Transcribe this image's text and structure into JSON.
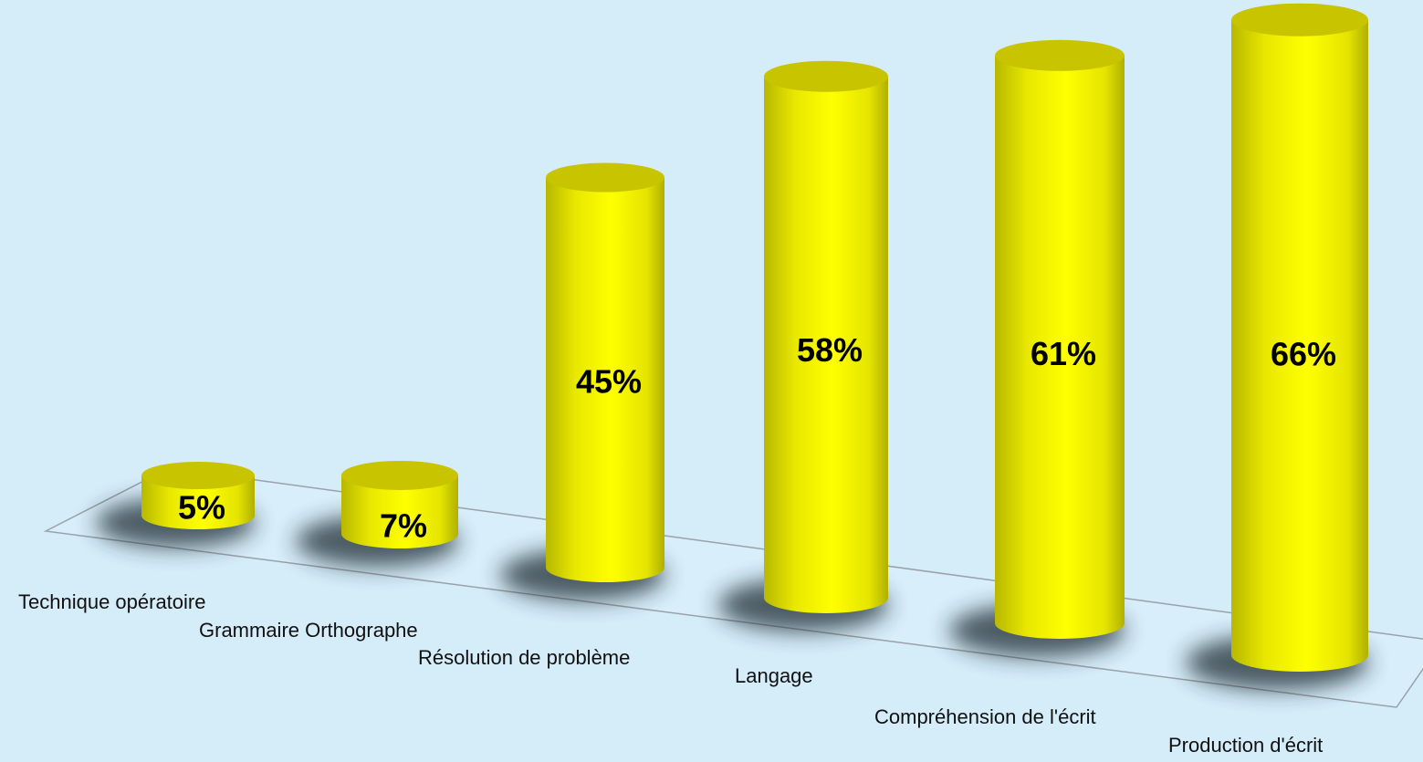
{
  "chart_data": {
    "type": "bar",
    "categories": [
      "Technique opératoire",
      "Grammaire Orthographe",
      "Résolution de problème",
      "Langage",
      "Compréhension de l'écrit",
      "Production d'écrit"
    ],
    "values": [
      5,
      7,
      45,
      58,
      61,
      66
    ],
    "value_labels": [
      "5%",
      "7%",
      "45%",
      "58%",
      "61%",
      "66%"
    ],
    "color": "#ffff00"
  }
}
